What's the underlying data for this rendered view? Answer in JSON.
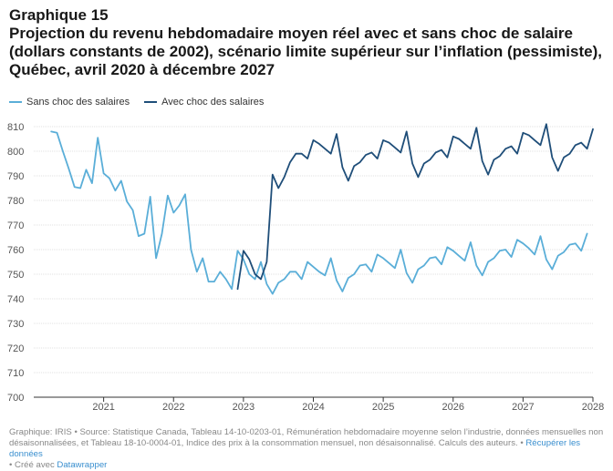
{
  "header": {
    "kicker": "Graphique 15",
    "title": "Projection du revenu hebdomadaire moyen réel avec et sans choc de salaire (dollars constants de 2002), scénario limite supérieur sur l’inflation (pessimiste), Québec, avril 2020 à décembre 2027"
  },
  "footer": {
    "source": "Graphique: IRIS • Source: Statistique Canada, Tableau 14-10-0203-01, Rémunération hebdomadaire moyenne selon l’industrie, données mensuelles non désaisonnalisées, et Tableau 18-10-0004-01, Indice des prix à la consommation mensuel, non désaisonnalisé. Calculs des auteurs. •",
    "download_link": "Récupérer les données",
    "created_prefix": "• Créé avec",
    "created_link": "Datawrapper"
  },
  "chart_data": {
    "type": "line",
    "title": "",
    "xlabel": "",
    "ylabel": "",
    "ylim": [
      700,
      810
    ],
    "yticks": [
      700,
      710,
      720,
      730,
      740,
      750,
      760,
      770,
      780,
      790,
      800,
      810
    ],
    "xlim": [
      "2020-04",
      "2027-12"
    ],
    "xticks": [
      "2021",
      "2022",
      "2023",
      "2024",
      "2025",
      "2026",
      "2027",
      "2028"
    ],
    "grid": true,
    "legend_position": "top-left",
    "series": [
      {
        "name": "Sans choc des salaires",
        "color": "#5aaed8",
        "start": "2020-04",
        "values": [
          808,
          807.5,
          800,
          793,
          785.5,
          785,
          792.5,
          787,
          805.5,
          791,
          789,
          784,
          788,
          779.5,
          776,
          765.5,
          766.5,
          781.5,
          756.5,
          766.5,
          782,
          775,
          778,
          782.5,
          760,
          751,
          756.5,
          747,
          747,
          751,
          748,
          744,
          759.5,
          756,
          750,
          748,
          755,
          746,
          742,
          746.5,
          748,
          751,
          751,
          748,
          755,
          753,
          751,
          749.5,
          756.5,
          747.5,
          743,
          748.5,
          750,
          753.5,
          754,
          751,
          758,
          756.5,
          754.5,
          752.5,
          760,
          750.5,
          746.5,
          752,
          753.5,
          756.5,
          757,
          754,
          761,
          759.5,
          757.5,
          755.5,
          763,
          753.5,
          749.5,
          755,
          756.5,
          759.5,
          760,
          757,
          764,
          762.5,
          760.5,
          758,
          765.5,
          756,
          752,
          757.5,
          759,
          762,
          762.5,
          759.5,
          766.5
        ]
      },
      {
        "name": "Avec choc des salaires",
        "color": "#1f4e79",
        "start": "2022-12",
        "values": [
          744,
          759.5,
          756,
          750,
          748,
          755,
          790.5,
          785,
          789.5,
          795.5,
          799,
          799,
          797,
          804.5,
          803,
          801,
          799,
          807,
          793.5,
          788,
          794,
          795.5,
          798.5,
          799.5,
          797,
          804.5,
          803.5,
          801.5,
          799.5,
          808,
          795,
          789.5,
          795,
          796.5,
          799.5,
          800.5,
          797.5,
          806,
          805,
          803,
          801,
          809.5,
          796,
          790.5,
          796.5,
          798,
          801,
          802,
          799,
          807.5,
          806.5,
          804.5,
          802.5,
          811,
          797.5,
          792,
          797.5,
          799,
          802.5,
          803.5,
          801,
          809
        ]
      }
    ]
  }
}
